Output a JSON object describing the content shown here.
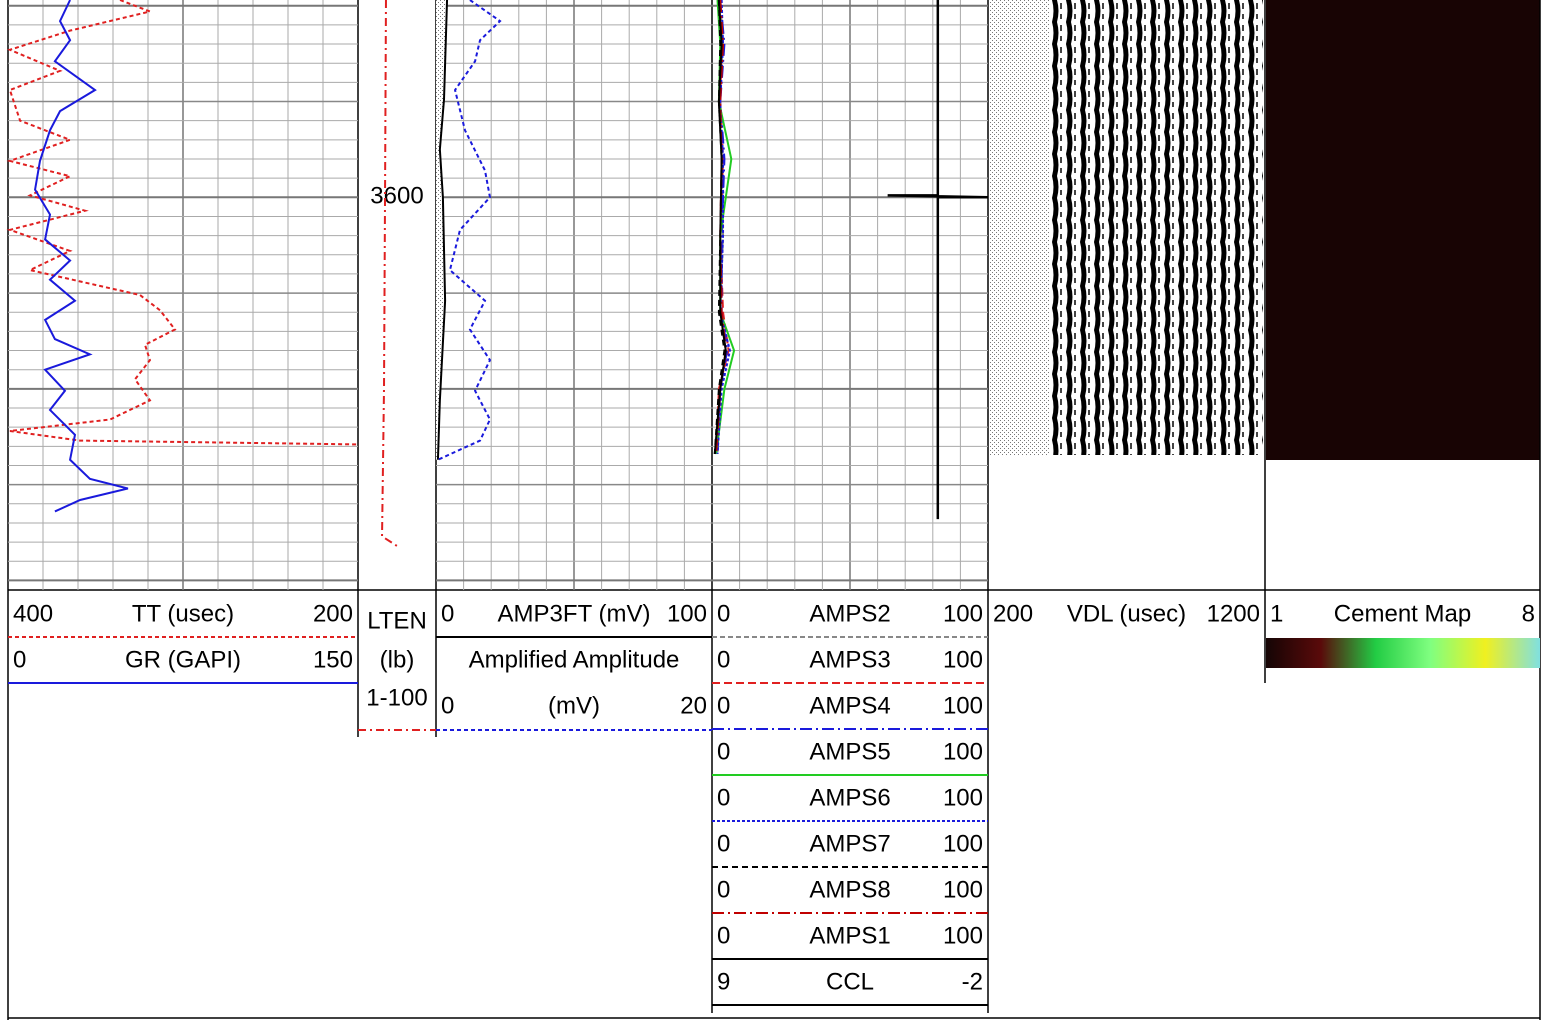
{
  "depth": {
    "ylim": [
      3589.7,
      3620.5
    ],
    "yticks": [
      3590,
      3591,
      3592,
      3593,
      3594,
      3595,
      3596,
      3597,
      3598,
      3599,
      3600,
      3601,
      3602,
      3603,
      3604,
      3605,
      3606,
      3607,
      3608,
      3609,
      3610,
      3611,
      3612,
      3613,
      3614,
      3615,
      3616,
      3617,
      3618,
      3619,
      3620
    ],
    "labels": [
      3600
    ]
  },
  "tracks": [
    {
      "curves": [
        {
          "name": "TT (usec)",
          "xlim": [
            400,
            200
          ],
          "color": "#e02020",
          "dash": "4 3",
          "depths": [
            3589.7,
            3590.3,
            3591.3,
            3592.3,
            3593.4,
            3594.4,
            3596.0,
            3597.0,
            3598.1,
            3598.9,
            3599.9,
            3600.7,
            3601.7,
            3602.8,
            3603.8,
            3605.1,
            3605.9,
            3606.9,
            3607.7,
            3608.5,
            3609.5,
            3610.6,
            3611.6,
            3612.2,
            3612.7,
            3612.9
          ],
          "values": [
            336,
            318.9,
            364.6,
            398.9,
            370.3,
            398.9,
            393.1,
            364.6,
            398.9,
            364.6,
            387.4,
            356,
            398.9,
            364.6,
            387.4,
            324.6,
            313.1,
            304.6,
            321.7,
            318.9,
            327.4,
            318.9,
            341.7,
            398.9,
            358.9,
            200
          ]
        },
        {
          "name": "GR (GAPI)",
          "xlim": [
            0,
            150
          ],
          "color": "#1a1adc",
          "dash": "none",
          "depths": [
            3589.7,
            3590.8,
            3591.8,
            3592.9,
            3594.4,
            3595.5,
            3596.5,
            3598.1,
            3599.6,
            3600.9,
            3602.2,
            3603.3,
            3604.3,
            3605.4,
            3606.4,
            3607.4,
            3608.2,
            3609.0,
            3610.1,
            3611.1,
            3612.4,
            3613.7,
            3614.7,
            3615.2,
            3615.8,
            3616.4
          ],
          "values": [
            26.6,
            22.3,
            26.6,
            20.1,
            37.3,
            22.3,
            18,
            13.7,
            11.6,
            18,
            15.9,
            26.6,
            18,
            28.7,
            15.9,
            20.1,
            35.1,
            15.9,
            24.4,
            18,
            28.7,
            26.6,
            35.1,
            51.4,
            30.9,
            20.1
          ]
        }
      ]
    },
    {
      "curves": [
        {
          "name": "LTEN",
          "unit": "(lb)",
          "range_label": "1-100",
          "xlim": [
            1,
            100
          ],
          "color": "#e02020",
          "dash": "8 4 2 4",
          "depths": [
            3589.7,
            3600,
            3610,
            3617.7,
            3618.3
          ],
          "values": [
            36.5,
            35.3,
            34,
            31.5,
            54.3
          ]
        }
      ]
    },
    {
      "curves": [
        {
          "name": "AMP3FT (mV)",
          "xlim": [
            0,
            100
          ],
          "color": "#000000",
          "dash": "none",
          "depths": [
            3589.7,
            3594.9,
            3597.5,
            3600,
            3605.4,
            3610.6,
            3613.7
          ],
          "values": [
            4,
            2.9,
            1.4,
            2.5,
            3.3,
            1.4,
            0.7
          ]
        },
        {
          "name": "Amplified Amplitude",
          "unit": "(mV)",
          "xlim": [
            0,
            20
          ],
          "color": "#1a1adc",
          "dash": "4 3",
          "depths": [
            3589.7,
            3590.8,
            3591.8,
            3592.9,
            3594.4,
            3596.5,
            3598.6,
            3600.0,
            3601.7,
            3603.8,
            3605.4,
            3606.9,
            3608.5,
            3610.1,
            3611.6,
            3612.7,
            3613.7
          ],
          "values": [
            2.46,
            4.64,
            3.19,
            2.83,
            1.38,
            2.1,
            3.55,
            3.91,
            1.74,
            1.01,
            3.55,
            2.46,
            3.91,
            2.83,
            3.91,
            3.19,
            0.14
          ]
        }
      ]
    },
    {
      "curves": [
        {
          "name": "AMPS2",
          "xlim": [
            0,
            100
          ],
          "color": "#888888",
          "dash": "5 3",
          "depths": [
            3589.7,
            3592,
            3595,
            3598,
            3602,
            3606,
            3608,
            3610,
            3613.4
          ],
          "values": [
            3,
            4,
            2.5,
            3.5,
            4,
            3,
            5,
            3,
            2
          ]
        },
        {
          "name": "AMPS3",
          "xlim": [
            0,
            100
          ],
          "color": "#e02020",
          "dash": "8 4",
          "depths": [
            3589.7,
            3592,
            3595,
            3598,
            3602,
            3606,
            3608,
            3610,
            3613.4
          ],
          "values": [
            2.5,
            3.5,
            3,
            4,
            3,
            4,
            6,
            2.5,
            1.5
          ]
        },
        {
          "name": "AMPS4",
          "xlim": [
            0,
            100
          ],
          "color": "#1a1adc",
          "dash": "12 4 2 4",
          "depths": [
            3589.7,
            3592,
            3595,
            3598,
            3602,
            3606,
            3608,
            3610,
            3613.4
          ],
          "values": [
            3,
            4.5,
            3,
            4.5,
            3.5,
            3.5,
            5.5,
            3,
            2
          ]
        },
        {
          "name": "AMPS5",
          "xlim": [
            0,
            100
          ],
          "color": "#22cc22",
          "dash": "none",
          "depths": [
            3589.7,
            3592,
            3595,
            3598,
            3602,
            3606,
            3608,
            3610,
            3613.4
          ],
          "values": [
            2,
            3,
            2.5,
            7,
            3,
            3,
            8,
            4.5,
            1.5
          ]
        },
        {
          "name": "AMPS6",
          "xlim": [
            0,
            100
          ],
          "color": "#1a1adc",
          "dash": "3 2",
          "depths": [
            3589.7,
            3592,
            3595,
            3598,
            3602,
            3606,
            3608,
            3610,
            3613.4
          ],
          "values": [
            3.5,
            4,
            3,
            4,
            4,
            3,
            6.5,
            3.5,
            2
          ]
        },
        {
          "name": "AMPS7",
          "xlim": [
            0,
            100
          ],
          "color": "#000000",
          "dash": "6 4",
          "depths": [
            3589.7,
            3592,
            3595,
            3598,
            3602,
            3606,
            3608,
            3610,
            3613.4
          ],
          "values": [
            2.5,
            3,
            2.5,
            3.5,
            3,
            2.5,
            4.5,
            2.5,
            1
          ]
        },
        {
          "name": "AMPS8",
          "xlim": [
            0,
            100
          ],
          "color": "#c00000",
          "dash": "12 4 2 4",
          "depths": [
            3589.7,
            3592,
            3595,
            3598,
            3602,
            3606,
            3608,
            3610,
            3613.4
          ],
          "values": [
            3,
            4,
            3,
            3.5,
            3,
            3.5,
            5,
            3,
            1.5
          ]
        },
        {
          "name": "AMPS1",
          "xlim": [
            0,
            100
          ],
          "color": "#000000",
          "dash": "none",
          "depths": [
            3589.7,
            3592,
            3595,
            3598,
            3602,
            3606,
            3608,
            3610,
            3613.4
          ],
          "values": [
            2.5,
            3.5,
            2.5,
            3.5,
            3,
            3,
            5,
            3,
            1
          ]
        },
        {
          "name": "CCL",
          "xlim": [
            9,
            -2
          ],
          "color": "#000000",
          "dash": "none",
          "depths": [
            3589.7,
            3599.9,
            3599.9,
            3600,
            3600,
            3616.8
          ],
          "values": [
            0,
            0,
            2,
            -2,
            0,
            0
          ]
        }
      ]
    },
    {
      "name": "VDL (usec)",
      "xlim": [
        200,
        1200
      ]
    },
    {
      "name": "Cement Map",
      "xlim": [
        1,
        8
      ],
      "colors": [
        "#150505",
        "#5a0a0a",
        "#22cc44",
        "#80ff80",
        "#f0f020",
        "#80e0e0"
      ]
    }
  ]
}
